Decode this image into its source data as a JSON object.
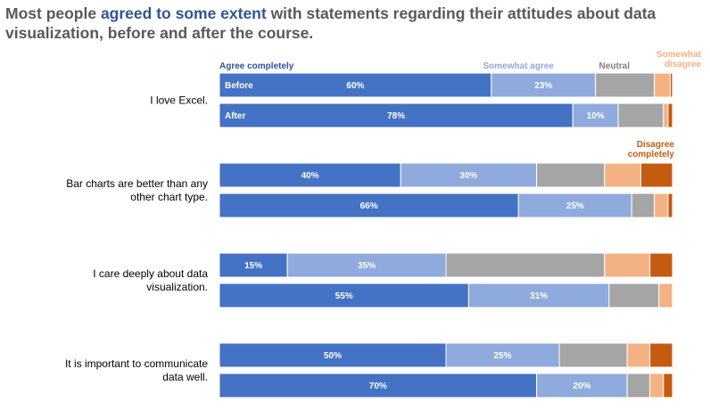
{
  "title": {
    "part1": "Most people ",
    "highlight": "agreed to some extent",
    "part2": " with statements regarding their attitudes about data visualization, before and after the course."
  },
  "chart_data": {
    "type": "bar",
    "orientation": "horizontal-stacked-100",
    "row_labels": [
      "Before",
      "After"
    ],
    "categories": [
      {
        "name": "Agree completely",
        "color": "#4472c4",
        "legend_label": "Agree completely",
        "legend_color": "#2f5597"
      },
      {
        "name": "Somewhat agree",
        "color": "#8faadc",
        "legend_label": "Somewhat agree",
        "legend_color": "#8faadc"
      },
      {
        "name": "Neutral",
        "color": "#a5a5a5",
        "legend_label": "Neutral",
        "legend_color": "#7f7f7f"
      },
      {
        "name": "Somewhat disagree",
        "color": "#f4b183",
        "legend_label": "Somewhat\ndisagree",
        "legend_color": "#f4b183"
      },
      {
        "name": "Disagree completely",
        "color": "#c55a11",
        "legend_label": "Disagree\ncompletely",
        "legend_color": "#c55a11"
      }
    ],
    "questions": [
      {
        "label": "I love Excel.",
        "before": [
          60,
          23,
          13,
          3.5,
          0.5
        ],
        "after": [
          78,
          10,
          10,
          1,
          1
        ],
        "before_text": [
          "60%",
          "23%",
          "",
          "",
          ""
        ],
        "after_text": [
          "78%",
          "10%",
          "",
          "",
          ""
        ]
      },
      {
        "label": "Bar charts are better than any other chart type.",
        "before": [
          40,
          30,
          15,
          8,
          7
        ],
        "after": [
          66,
          25,
          5,
          3,
          1
        ],
        "before_text": [
          "40%",
          "30%",
          "",
          "",
          ""
        ],
        "after_text": [
          "66%",
          "25%",
          "",
          "",
          ""
        ]
      },
      {
        "label": "I care deeply about data visualization.",
        "before": [
          15,
          35,
          35,
          10,
          5
        ],
        "after": [
          55,
          31,
          11,
          3,
          0
        ],
        "before_text": [
          "15%",
          "35%",
          "",
          "",
          ""
        ],
        "after_text": [
          "55%",
          "31%",
          "",
          "",
          ""
        ]
      },
      {
        "label": "It is important to communicate data well.",
        "before": [
          50,
          25,
          15,
          5,
          5
        ],
        "after": [
          70,
          20,
          5,
          3,
          2
        ],
        "before_text": [
          "50%",
          "25%",
          "",
          "",
          ""
        ],
        "after_text": [
          "70%",
          "20%",
          "",
          "",
          ""
        ]
      }
    ],
    "value_unit": "%",
    "xlim": [
      0,
      100
    ]
  }
}
